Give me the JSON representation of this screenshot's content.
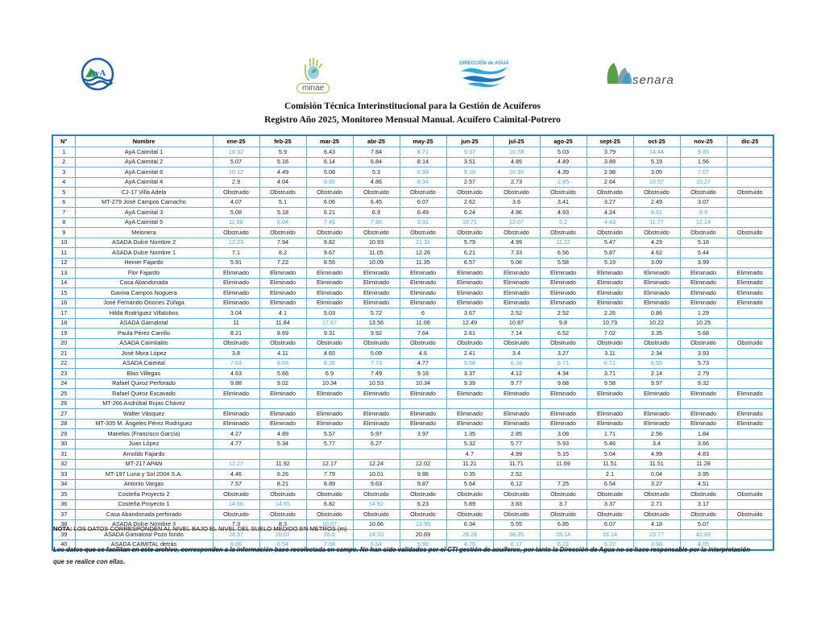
{
  "header": {
    "logos": {
      "aya_label": "AyA",
      "minae_label": "minae",
      "da_label": "DIRECCIÓN de AGUA",
      "senara_label": "senara"
    },
    "title_line1": "Comisión Técnica Interinstitucional para la Gestión de Acuíferos",
    "title_line2": "Registro Año 2025, Monitoreo Mensual Manual. Acuífero Caimital-Potrero"
  },
  "table": {
    "columns": [
      "N°",
      "Nombre",
      "ene-25",
      "feb-25",
      "mar-25",
      "abr-25",
      "may-25",
      "jun-25",
      "jul-25",
      "ago-25",
      "sept-25",
      "oct-25",
      "nov-25",
      "dic-25"
    ],
    "rows": [
      {
        "n": "1",
        "nombre": "AyA Caimital 1",
        "values": [
          "18.32",
          "5.9",
          "6.43",
          "7.84",
          "8.71",
          "9.37",
          "10.78",
          "5.03",
          "3.79",
          "14.44",
          "9.85",
          ""
        ],
        "blue": [
          0,
          4,
          5,
          6,
          9,
          10
        ]
      },
      {
        "n": "2",
        "nombre": "AyA Caimital 2",
        "values": [
          "5.07",
          "5.16",
          "6.14",
          "6.84",
          "8.14",
          "3.51",
          "4.85",
          "4.49",
          "3.89",
          "5.19",
          "1.56",
          ""
        ],
        "blue": []
      },
      {
        "n": "3",
        "nombre": "AyA Caimital 6",
        "values": [
          "10.12",
          "4.49",
          "5.08",
          "5.3",
          "6.93",
          "9.18",
          "10.35",
          "4.39",
          "2.98",
          "3.05",
          "7.07",
          ""
        ],
        "blue": [
          0,
          4,
          5,
          6,
          10
        ]
      },
      {
        "n": "4",
        "nombre": "AyA Caimital 4",
        "values": [
          "2.9",
          "4.04",
          "9.85",
          "4.86",
          "8.34",
          "2.57",
          "2.73",
          "2.85",
          "2.64",
          "10.57",
          "10.27",
          ""
        ],
        "blue": [
          2,
          4,
          7,
          9,
          10
        ]
      },
      {
        "n": "5",
        "nombre": "CJ-17 Villa Adela",
        "values": [
          "Obstruido",
          "Obstruido",
          "Obstruido",
          "Obstruido",
          "Obstruido",
          "Obstruido",
          "Obstruido",
          "Obstruido",
          "Obstruido",
          "Obstruido",
          "Obstruido",
          "Obstruido"
        ],
        "blue": []
      },
      {
        "n": "6",
        "nombre": "MT-279 José Campos Camacho",
        "values": [
          "4.07",
          "5.1",
          "6.06",
          "6.45",
          "6.07",
          "2.62",
          "3.6",
          "3.41",
          "3.27",
          "2.49",
          "3.07",
          ""
        ],
        "blue": []
      },
      {
        "n": "7",
        "nombre": "AyA Caimital 3",
        "values": [
          "5.08",
          "5.18",
          "6.21",
          "6.9",
          "6.49",
          "6.24",
          "4.96",
          "4.93",
          "4.24",
          "8.61",
          "8.9",
          ""
        ],
        "blue": [
          9,
          10
        ]
      },
      {
        "n": "8",
        "nombre": "AyA Caimital 5",
        "values": [
          "11.88",
          "6.04",
          "7.45",
          "7.86",
          "9.31",
          "10.71",
          "12.07",
          "5.2",
          "4.43",
          "11.77",
          "12.14",
          ""
        ],
        "blue": [
          0,
          1,
          2,
          3,
          4,
          5,
          6,
          7,
          8,
          9,
          10
        ]
      },
      {
        "n": "9",
        "nombre": "Melonera",
        "values": [
          "Obstruido",
          "Obstruido",
          "Obstruido",
          "Obstruido",
          "Obstruido",
          "Obstruido",
          "Obstruido",
          "Obstruido",
          "Obstruido",
          "Obstruido",
          "Obstruido",
          "Obstruido"
        ],
        "blue": []
      },
      {
        "n": "10",
        "nombre": "ASADA Dulce Nombre 2",
        "values": [
          "12.23",
          "7.94",
          "9.82",
          "10.93",
          "21.31",
          "5.79",
          "4.99",
          "11.22",
          "5.47",
          "4.29",
          "5.16",
          ""
        ],
        "blue": [
          0,
          4,
          7
        ]
      },
      {
        "n": "11",
        "nombre": "ASADA Dulce Nombre 1",
        "values": [
          "7.1",
          "8.2",
          "9.67",
          "11.05",
          "12.26",
          "6.21",
          "7.33",
          "6.56",
          "5.87",
          "4.62",
          "5.44",
          ""
        ],
        "blue": []
      },
      {
        "n": "12",
        "nombre": "Heiner Fajardo",
        "values": [
          "5.91",
          "7.22",
          "8.55",
          "10.09",
          "11.35",
          "6.57",
          "5.06",
          "5.58",
          "5.19",
          "3.09",
          "3.99",
          ""
        ],
        "blue": []
      },
      {
        "n": "13",
        "nombre": "Flor Fajardo",
        "values": [
          "Eliminado",
          "Eliminado",
          "Eliminado",
          "Eliminado",
          "Eliminado",
          "Eliminado",
          "Eliminado",
          "Eliminado",
          "Eliminado",
          "Eliminado",
          "Eliminado",
          "Eliminado"
        ],
        "blue": []
      },
      {
        "n": "14",
        "nombre": "Casa Abandonada",
        "values": [
          "Eliminado",
          "Eliminado",
          "Eliminado",
          "Eliminado",
          "Eliminado",
          "Eliminado",
          "Eliminado",
          "Eliminado",
          "Eliminado",
          "Eliminado",
          "Eliminado",
          "Eliminado"
        ],
        "blue": []
      },
      {
        "n": "15",
        "nombre": "Gavina Campos Noguera",
        "values": [
          "Eliminado",
          "Eliminado",
          "Eliminado",
          "Eliminado",
          "Eliminado",
          "Eliminado",
          "Eliminado",
          "Eliminado",
          "Eliminado",
          "Eliminado",
          "Eliminado",
          "Eliminado"
        ],
        "blue": []
      },
      {
        "n": "16",
        "nombre": "José Fernando Oriones Zúñiga",
        "values": [
          "Eliminado",
          "Eliminado",
          "Eliminado",
          "Eliminado",
          "Eliminado",
          "Eliminado",
          "Eliminado",
          "Eliminado",
          "Eliminado",
          "Eliminado",
          "Eliminado",
          "Eliminado"
        ],
        "blue": []
      },
      {
        "n": "17",
        "nombre": "Hilda Rodríguez Villalobos",
        "values": [
          "3.04",
          "4.1",
          "5.03",
          "5.72",
          "6",
          "3.67",
          "2.52",
          "2.52",
          "2.26",
          "0.86",
          "1.29",
          ""
        ],
        "blue": []
      },
      {
        "n": "18",
        "nombre": "ASADA Gamalotal",
        "values": [
          "11",
          "11.84",
          "17.67",
          "13.56",
          "11.06",
          "12.49",
          "10.87",
          "9.8",
          "10.73",
          "10.22",
          "10.25",
          ""
        ],
        "blue": [
          2
        ]
      },
      {
        "n": "19",
        "nombre": "Paula Pérez Carrillo",
        "values": [
          "8.21",
          "8.69",
          "9.31",
          "9.92",
          "7.64",
          "2.61",
          "7.14",
          "6.52",
          "7.02",
          "3.35",
          "5.68",
          ""
        ],
        "blue": []
      },
      {
        "n": "20",
        "nombre": "ASADA Caimitalito",
        "values": [
          "Obstruido",
          "Obstruido",
          "Obstruido",
          "Obstruido",
          "Obstruido",
          "Obstruido",
          "Obstruido",
          "Obstruido",
          "Obstruido",
          "Obstruido",
          "Obstruido",
          "Obstruido"
        ],
        "blue": []
      },
      {
        "n": "21",
        "nombre": "José Mora López",
        "values": [
          "3.8",
          "4.11",
          "4.65",
          "5.09",
          "4.6",
          "2.41",
          "3.4",
          "3.27",
          "3.11",
          "2.34",
          "3.93",
          ""
        ],
        "blue": []
      },
      {
        "n": "22",
        "nombre": "ASADA Caimital",
        "values": [
          "7.03",
          "8.66",
          "8.26",
          "7.73",
          "4.77",
          "5.68",
          "6.16",
          "6.71",
          "6.71",
          "6.55",
          "5.73",
          ""
        ],
        "blue": [
          0,
          1,
          2,
          3,
          5,
          6,
          7,
          8,
          9
        ]
      },
      {
        "n": "23",
        "nombre": "Blas Villegas",
        "values": [
          "4.63",
          "5.66",
          "6.9",
          "7.49",
          "9.16",
          "3.37",
          "4.12",
          "4.34",
          "3.71",
          "2.14",
          "2.79",
          ""
        ],
        "blue": []
      },
      {
        "n": "24",
        "nombre": "Rafael Quiroz Perforado",
        "values": [
          "9.88",
          "9.02",
          "10.34",
          "10.53",
          "10.34",
          "9.39",
          "9.77",
          "9.68",
          "9.58",
          "9.97",
          "9.32",
          ""
        ],
        "blue": []
      },
      {
        "n": "25",
        "nombre": "Rafael Quiroz Excavado",
        "values": [
          "Eliminado",
          "Eliminado",
          "Eliminado",
          "Eliminado",
          "Eliminado",
          "Eliminado",
          "Eliminado",
          "Eliminado",
          "Eliminado",
          "Eliminado",
          "Eliminado",
          "Eliminado"
        ],
        "blue": []
      },
      {
        "n": "26",
        "nombre": "MT-266 Asdrúbal Rojas Chávez",
        "values": [
          "",
          "",
          "",
          "",
          "",
          "",
          "",
          "",
          "",
          "",
          "",
          ""
        ],
        "blue": []
      },
      {
        "n": "27",
        "nombre": "Walter Vásquez",
        "values": [
          "Eliminado",
          "Eliminado",
          "Eliminado",
          "Eliminado",
          "Eliminado",
          "Eliminado",
          "Eliminado",
          "Eliminado",
          "Eliminado",
          "Eliminado",
          "Eliminado",
          "Eliminado"
        ],
        "blue": []
      },
      {
        "n": "28",
        "nombre": "MT-305 M. Ángeles Pérez Rodríguez",
        "values": [
          "Eliminado",
          "Eliminado",
          "Eliminado",
          "Eliminado",
          "Eliminado",
          "Eliminado",
          "Eliminado",
          "Eliminado",
          "Eliminado",
          "Eliminado",
          "Eliminado",
          "Eliminado"
        ],
        "blue": []
      },
      {
        "n": "29",
        "nombre": "Marielos (Francisco García)",
        "values": [
          "4.27",
          "4.89",
          "5.57",
          "5.97",
          "3.97",
          "1.35",
          "2.85",
          "3.08",
          "1.71",
          "2.56",
          "1.84",
          ""
        ],
        "blue": []
      },
      {
        "n": "30",
        "nombre": "Juan López",
        "values": [
          "4.77",
          "5.34",
          "5.77",
          "6.27",
          "",
          "5.32",
          "5.77",
          "5.93",
          "5.46",
          "3.4",
          "3.66",
          ""
        ],
        "blue": []
      },
      {
        "n": "31",
        "nombre": "Arnoldo Fajardo",
        "values": [
          "",
          "",
          "",
          "",
          "",
          "4.7",
          "4.99",
          "5.15",
          "5.04",
          "4.99",
          "4.83",
          ""
        ],
        "blue": []
      },
      {
        "n": "32",
        "nombre": "MT-217 APAN",
        "values": [
          "12.27",
          "11.92",
          "12.17",
          "12.24",
          "12.02",
          "11.21",
          "11.71",
          "11.69",
          "11.51",
          "11.51",
          "11.28",
          ""
        ],
        "blue": [
          0
        ]
      },
      {
        "n": "33",
        "nombre": "MT-197 Luna y Sol 2004 S.A.",
        "values": [
          "4.46",
          "6.26",
          "7.79",
          "10.01",
          "9.86",
          "0.35",
          "2.52",
          "",
          "2.1",
          "0.04",
          "3.95",
          ""
        ],
        "blue": []
      },
      {
        "n": "34",
        "nombre": "Antonio Vargas",
        "values": [
          "7.57",
          "8.21",
          "8.89",
          "9.63",
          "9.87",
          "5.64",
          "6.12",
          "7.25",
          "6.54",
          "3.27",
          "4.51",
          ""
        ],
        "blue": []
      },
      {
        "n": "35",
        "nombre": "Costeña Proyecto 2",
        "values": [
          "Obstruido",
          "Obstruido",
          "Obstruido",
          "Obstruido",
          "Obstruido",
          "Obstruido",
          "Obstruido",
          "Obstruido",
          "Obstruido",
          "Obstruido",
          "Obstruido",
          "Obstruido"
        ],
        "blue": []
      },
      {
        "n": "36",
        "nombre": "Costeña Proyecto 1",
        "values": [
          "14.66",
          "14.65",
          "6.82",
          "14.92",
          "6.23",
          "5.89",
          "3.83",
          "3.7",
          "3.37",
          "2.71",
          "3.17",
          ""
        ],
        "blue": [
          0,
          1,
          3
        ]
      },
      {
        "n": "37",
        "nombre": "Casa Abandonada perforado",
        "values": [
          "Obstruido",
          "Obstruido",
          "Obstruido",
          "Obstruido",
          "Obstruido",
          "Obstruido",
          "Obstruido",
          "Obstruido",
          "Obstruido",
          "Obstruido",
          "Obstruido",
          "Obstruido"
        ],
        "blue": []
      },
      {
        "n": "38",
        "nombre": "ASADA Dulce Nombre 3",
        "values": [
          "7.3",
          "8.3",
          "10.07",
          "10.66",
          "12.95",
          "6.34",
          "5.55",
          "6.85",
          "6.07",
          "4.18",
          "5.07",
          ""
        ],
        "blue": [
          2,
          4
        ]
      },
      {
        "n": "39",
        "nombre": "ASADA Gamalotal Pozo fondo",
        "values": [
          "24.97",
          "20.07",
          "26.6",
          "24.33",
          "20.69",
          "28.26",
          "38.35",
          "28.14",
          "28.14",
          "23.77",
          "42.89",
          ""
        ],
        "blue": [
          0,
          1,
          2,
          3,
          5,
          6,
          7,
          8,
          9,
          10
        ]
      },
      {
        "n": "40",
        "nombre": "ASADA CAIMITAL detrás",
        "values": [
          "6.06",
          "6.54",
          "7.08",
          "5.64",
          "5.90",
          "4.70",
          "6.17",
          "6.22",
          "6.22",
          "3.66",
          "4.05",
          ""
        ],
        "blue": [
          0,
          1,
          2,
          3,
          4,
          5,
          6,
          7,
          8,
          9,
          10
        ]
      }
    ]
  },
  "footer": {
    "nota_label": "NOTA:",
    "nota_text": " LOS DATOS CORRESPONDEN AL NIVEL BAJO EL NIVEL DEL SUELO MEDIDO EN METROS (m)",
    "disclaimer": "Los datos que se facilitan en este archivo, corresponden a la información base recolectada en campo. No han sido validados por el CTI gestión de acuíferos, por tanto la Dirección de Agua no se hace responsable por la interpretación que se realice con ellas."
  },
  "colors": {
    "value_blue": "#4aa8d8",
    "grid_blue": "#55b4e4",
    "outer_border_blue": "#1b87c9"
  }
}
